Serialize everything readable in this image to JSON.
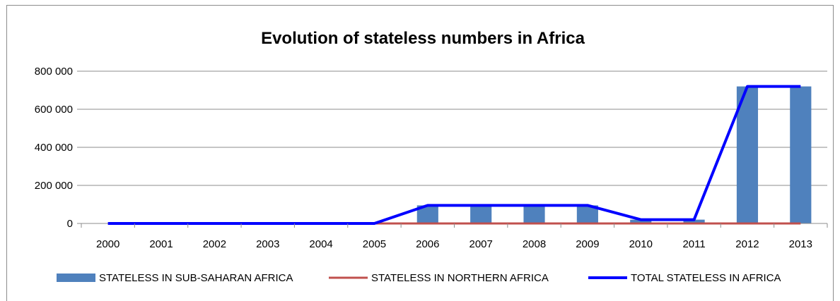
{
  "chart_data": {
    "type": "bar+line",
    "title": "Evolution of stateless numbers  in Africa",
    "xlabel": "",
    "ylabel": "",
    "categories": [
      "2000",
      "2001",
      "2002",
      "2003",
      "2004",
      "2005",
      "2006",
      "2007",
      "2008",
      "2009",
      "2010",
      "2011",
      "2012",
      "2013"
    ],
    "ylim": [
      0,
      800000
    ],
    "yticks": [
      0,
      200000,
      400000,
      600000,
      800000
    ],
    "ytick_labels": [
      "0",
      "200 000",
      "400 000",
      "600 000",
      "800 000"
    ],
    "grid": "horizontal",
    "legend_position": "bottom",
    "series": [
      {
        "name": "STATELESS IN SUB-SAHARAN AFRICA",
        "kind": "bar",
        "color": "#4f81bd",
        "values": [
          0,
          0,
          0,
          0,
          0,
          0,
          95000,
          95000,
          95000,
          95000,
          20000,
          20000,
          720000,
          720000
        ]
      },
      {
        "name": "STATELESS IN NORTHERN AFRICA",
        "kind": "line",
        "color": "#c0504d",
        "values": [
          0,
          0,
          0,
          0,
          0,
          0,
          0,
          0,
          0,
          0,
          0,
          0,
          0,
          0
        ]
      },
      {
        "name": "TOTAL STATELESS IN AFRICA",
        "kind": "line",
        "color": "#0000ff",
        "values": [
          0,
          0,
          0,
          0,
          0,
          0,
          95000,
          95000,
          95000,
          95000,
          20000,
          20000,
          720000,
          720000
        ]
      }
    ]
  }
}
